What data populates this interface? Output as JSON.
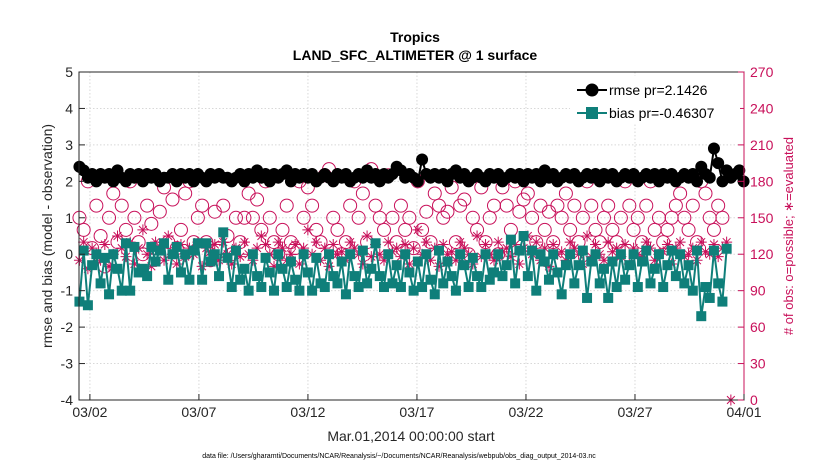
{
  "chart_data": {
    "type": "line",
    "title": "Tropics",
    "subtitle": "LAND_SFC_ALTIMETER @ 1 surface",
    "xlabel": "Mar.01,2014 00:00:00 start",
    "ylabel": "rmse and bias (model - observation)",
    "y2label": "# of obs: o=possible; ∗=evaluated",
    "footnote": "data file: /Users/gharamti/Documents/NCAR/Reanalysis/~/Documents/NCAR/Reanalysis/webpub/obs_diag_output_2014-03.nc",
    "xlim": [
      1.5,
      32.0
    ],
    "ylim": [
      -4,
      5
    ],
    "y2lim": [
      0,
      270
    ],
    "xticks": [
      2,
      7,
      12,
      17,
      22,
      27,
      32
    ],
    "xtick_labels": [
      "03/02",
      "03/07",
      "03/12",
      "03/17",
      "03/22",
      "03/27",
      "04/01"
    ],
    "yticks": [
      5,
      4,
      3,
      2,
      1,
      0,
      -1,
      -2,
      -3,
      -4
    ],
    "yticks_labels": [
      "5",
      "4",
      "3",
      "2",
      "1",
      "0",
      "-1",
      "-2",
      "-3",
      "-4"
    ],
    "y2ticks": [
      270,
      240,
      210,
      180,
      150,
      120,
      90,
      60,
      30,
      0
    ],
    "y2tick_labels": [
      "270",
      "240",
      "210",
      "180",
      "150",
      "120",
      "90",
      "60",
      "30",
      "0"
    ],
    "grid": true,
    "legend_position": "top-right",
    "series": [
      {
        "name": "rmse pr=2.1426",
        "color": "#000000",
        "marker": "circle",
        "axis": "left",
        "values": [
          2.4,
          2.3,
          2.1,
          2.2,
          2.0,
          2.2,
          2.1,
          2.2,
          2.0,
          2.3,
          2.1,
          2.0,
          2.2,
          2.1,
          2.2,
          2.0,
          2.2,
          2.1,
          2.2,
          2.0,
          2.1,
          2.1,
          2.2,
          2.0,
          2.2,
          2.1,
          2.2,
          2.0,
          2.2,
          2.1,
          2.0,
          2.2,
          2.1,
          2.2,
          2.1,
          2.1,
          2.0,
          2.1,
          2.2,
          2.0,
          2.2,
          2.1,
          2.3,
          2.1,
          2.2,
          2.0,
          2.2,
          2.1,
          2.2,
          2.3,
          2.0,
          2.2,
          2.1,
          2.2,
          2.1,
          2.2,
          2.0,
          2.1,
          2.2,
          2.1,
          2.0,
          2.2,
          2.1,
          2.2,
          2.0,
          2.1,
          2.2,
          2.1,
          2.3,
          2.1,
          2.2,
          2.0,
          2.2,
          2.1,
          2.2,
          2.4,
          2.3,
          2.1,
          2.2,
          2.1,
          2.0,
          2.6,
          2.2,
          2.1,
          2.2,
          2.1,
          2.2,
          2.0,
          2.2,
          2.3,
          2.1,
          2.2,
          2.0,
          2.1,
          2.2,
          2.1,
          2.0,
          2.2,
          2.1,
          2.2,
          2.0,
          2.1,
          2.2,
          2.1,
          2.2,
          2.0,
          2.2,
          2.1,
          2.2,
          2.0,
          2.3,
          2.1,
          2.2,
          2.0,
          2.1,
          2.2,
          2.1,
          2.2,
          2.0,
          2.1,
          2.2,
          2.1,
          2.2,
          2.0,
          2.2,
          2.1,
          2.2,
          2.0,
          2.1,
          2.2,
          2.1,
          2.2,
          2.0,
          2.1,
          2.2,
          2.1,
          2.2,
          2.0,
          2.2,
          2.1,
          2.2,
          2.0,
          2.1,
          2.2,
          2.1,
          2.2,
          2.0,
          2.4,
          2.2,
          2.1,
          2.9,
          2.5,
          2.0,
          2.3,
          2.1,
          2.2,
          2.3,
          2.0
        ]
      },
      {
        "name": "bias pr=-0.46307",
        "color": "#0f7f7a",
        "marker": "square",
        "axis": "left",
        "values": [
          -1.3,
          0.1,
          -1.4,
          -0.3,
          0.0,
          -0.8,
          -0.1,
          -1.1,
          0.0,
          -0.4,
          -1.0,
          0.3,
          -1.0,
          0.2,
          -0.5,
          -0.4,
          -0.6,
          0.2,
          -0.2,
          0.1,
          0.3,
          -0.7,
          0.0,
          0.2,
          -0.5,
          0.0,
          -0.7,
          0.1,
          0.3,
          -0.7,
          0.3,
          -0.2,
          0.0,
          -0.6,
          0.6,
          -0.1,
          -0.9,
          0.1,
          -0.7,
          -0.4,
          -1.0,
          0.0,
          -0.6,
          -0.9,
          -0.1,
          -0.5,
          -1.0,
          0.0,
          -0.4,
          -0.9,
          -0.2,
          -0.7,
          -1.0,
          0.0,
          -0.5,
          -1.0,
          -0.1,
          -0.8,
          -0.9,
          0.0,
          -0.6,
          -0.8,
          -0.2,
          -1.1,
          0.0,
          -0.6,
          -0.9,
          0.1,
          -0.8,
          -0.4,
          0.3,
          -0.6,
          -0.9,
          0.0,
          -0.8,
          -0.3,
          -0.9,
          0.0,
          -0.5,
          -1.0,
          -0.2,
          -0.9,
          0.0,
          -0.7,
          -1.1,
          0.1,
          -0.8,
          -0.2,
          -0.6,
          -1.0,
          0.0,
          -0.3,
          -0.9,
          -0.1,
          -0.6,
          -0.9,
          0.0,
          -0.7,
          -0.5,
          0.0,
          -0.6,
          -0.3,
          0.4,
          -0.8,
          0.1,
          0.5,
          -0.6,
          0.1,
          -1.0,
          0.0,
          -0.2,
          -0.7,
          0.0,
          -0.5,
          -1.1,
          -0.3,
          0.0,
          -0.8,
          -0.3,
          0.1,
          -1.2,
          -0.2,
          0.0,
          -0.8,
          -0.4,
          -1.2,
          -0.2,
          -0.9,
          0.0,
          -0.7,
          -0.3,
          0.0,
          -0.9,
          -0.2,
          0.1,
          -0.8,
          -0.4,
          0.0,
          -0.9,
          -0.3,
          0.1,
          -0.6,
          0.0,
          -0.8,
          -0.3,
          -1.0,
          0.1,
          -1.7,
          -0.9,
          -1.2,
          0.1,
          -0.8,
          -1.3,
          0.15
        ]
      },
      {
        "name": "possible obs",
        "color": "#c8105a",
        "marker": "open-circle",
        "axis": "right",
        "values": [
          150,
          140,
          180,
          125,
          160,
          135,
          110,
          150,
          170,
          130,
          160,
          140,
          180,
          150,
          130,
          120,
          160,
          145,
          125,
          155,
          175,
          130,
          165,
          125,
          140,
          170,
          180,
          130,
          150,
          160,
          130,
          115,
          155,
          125,
          160,
          135,
          120,
          150,
          130,
          150,
          170,
          150,
          165,
          140,
          180,
          150,
          130,
          120,
          140,
          160,
          130,
          125,
          180,
          150,
          175,
          160,
          140,
          130,
          185,
          190,
          150,
          140,
          120,
          130,
          160,
          180,
          150,
          170,
          130,
          190,
          160,
          150,
          140,
          185,
          150,
          130,
          160,
          140,
          150,
          125,
          180,
          140,
          155,
          130,
          170,
          160,
          150,
          155,
          175,
          130,
          160,
          165,
          120,
          150,
          140,
          175,
          130,
          150,
          160,
          120,
          175,
          160,
          140,
          180,
          155,
          165,
          170,
          150,
          130,
          160,
          140,
          155,
          130,
          160,
          150,
          170,
          140,
          160,
          130,
          150,
          180,
          160,
          140,
          130,
          150,
          160,
          140,
          130,
          150,
          180,
          160,
          140,
          150,
          130,
          160,
          180,
          140,
          150,
          130,
          140,
          150,
          160,
          170,
          150,
          140,
          160,
          130,
          180,
          170,
          150,
          140,
          160,
          150
        ]
      },
      {
        "name": "evaluated obs",
        "color": "#c8105a",
        "marker": "asterisk",
        "axis": "right",
        "values": [
          115,
          130,
          108,
          125,
          120,
          115,
          128,
          110,
          120,
          135,
          125,
          118,
          130,
          112,
          125,
          140,
          120,
          110,
          130,
          125,
          115,
          135,
          120,
          112,
          128,
          118,
          125,
          120,
          130,
          110,
          125,
          122,
          128,
          115,
          130,
          120,
          112,
          125,
          118,
          130,
          120,
          115,
          125,
          135,
          128,
          120,
          110,
          130,
          125,
          115,
          120,
          128,
          112,
          125,
          140,
          120,
          130,
          115,
          125,
          110,
          128,
          120,
          122,
          115,
          130,
          125,
          120,
          112,
          135,
          118,
          128,
          120,
          115,
          130,
          122,
          125,
          118,
          128,
          112,
          125,
          140,
          120,
          130,
          115,
          125,
          110,
          128,
          120,
          122,
          115,
          130,
          125,
          120,
          112,
          135,
          118,
          128,
          120,
          115,
          130,
          122,
          125,
          118,
          128,
          112,
          125,
          135,
          120,
          130,
          115,
          125,
          110,
          128,
          120,
          122,
          115,
          130,
          125,
          120,
          112,
          135,
          118,
          128,
          120,
          115,
          130,
          122,
          125,
          118,
          128,
          112,
          125,
          120,
          118,
          130,
          125,
          115,
          120,
          122,
          128,
          112,
          125,
          130,
          118,
          120,
          125,
          115,
          130,
          122,
          120,
          128,
          118,
          125,
          130,
          0
        ]
      }
    ]
  }
}
